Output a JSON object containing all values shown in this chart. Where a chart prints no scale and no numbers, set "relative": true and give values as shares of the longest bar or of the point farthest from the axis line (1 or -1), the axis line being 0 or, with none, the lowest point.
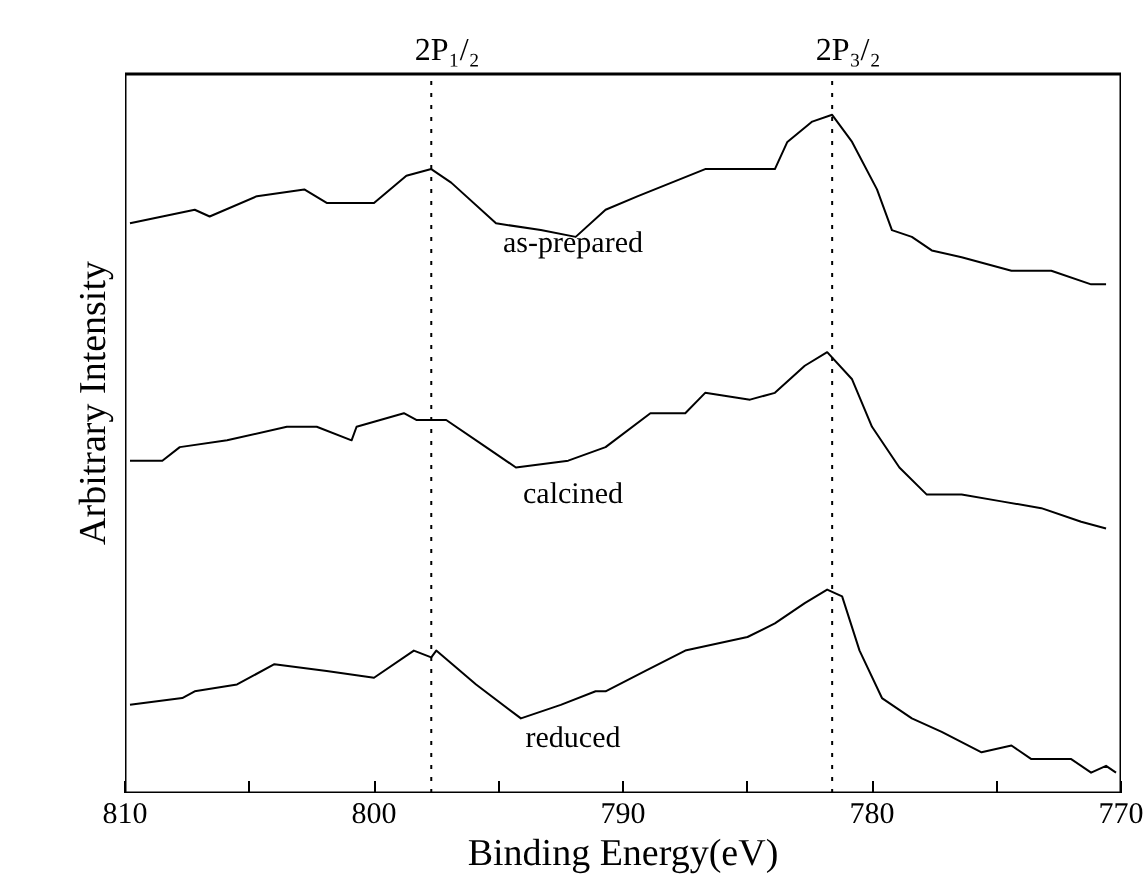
{
  "chart_data": {
    "type": "line",
    "xlabel": "Binding Energy(eV)",
    "ylabel": "Arbitrary Intensity",
    "relative": true,
    "xlim": [
      810,
      770
    ],
    "xticks": [
      810,
      {
        "value": 805,
        "label": null
      },
      800,
      {
        "value": 795,
        "label": null
      },
      790,
      {
        "value": 785,
        "label": null
      },
      780,
      {
        "value": 775,
        "label": null
      },
      770
    ],
    "grid": false,
    "marker": "none",
    "line_style": "solid",
    "ref_lines": [
      {
        "axis": "x",
        "value": 797.7,
        "label": "2P₁/₂",
        "line_style": "dotted",
        "color": "#000000"
      },
      {
        "axis": "x",
        "value": 781.6,
        "label": "2P₃/₂",
        "line_style": "dotted",
        "color": "#000000"
      }
    ],
    "series": [
      {
        "name": "as-prepared",
        "color": "#000000",
        "x": [
          809.8,
          807.2,
          806.6,
          804.7,
          802.8,
          801.9,
          800.0,
          798.7,
          797.7,
          796.9,
          795.1,
          793.3,
          791.9,
          790.7,
          789.4,
          786.7,
          783.9,
          783.4,
          782.4,
          781.6,
          780.8,
          779.8,
          779.2,
          778.4,
          777.6,
          776.4,
          774.4,
          772.8,
          771.2,
          770.6
        ],
        "values": [
          0.84,
          0.86,
          0.85,
          0.88,
          0.89,
          0.87,
          0.87,
          0.91,
          0.92,
          0.9,
          0.84,
          0.83,
          0.82,
          0.86,
          0.88,
          0.92,
          0.92,
          0.96,
          0.99,
          1.0,
          0.96,
          0.89,
          0.83,
          0.82,
          0.8,
          0.79,
          0.77,
          0.77,
          0.75,
          0.75
        ]
      },
      {
        "name": "calcined",
        "color": "#000000",
        "x": [
          809.8,
          808.5,
          807.8,
          805.9,
          803.5,
          802.3,
          800.9,
          800.7,
          798.8,
          798.3,
          797.1,
          795.5,
          794.3,
          792.2,
          790.7,
          788.9,
          787.5,
          786.7,
          784.9,
          783.9,
          782.7,
          781.8,
          780.8,
          780.0,
          778.9,
          777.8,
          776.4,
          774.8,
          773.2,
          771.6,
          770.6
        ],
        "values": [
          0.49,
          0.49,
          0.51,
          0.52,
          0.54,
          0.54,
          0.52,
          0.54,
          0.56,
          0.55,
          0.55,
          0.51,
          0.48,
          0.49,
          0.51,
          0.56,
          0.56,
          0.59,
          0.58,
          0.59,
          0.63,
          0.65,
          0.61,
          0.54,
          0.48,
          0.44,
          0.44,
          0.43,
          0.42,
          0.4,
          0.39
        ]
      },
      {
        "name": "reduced",
        "color": "#000000",
        "x": [
          809.8,
          807.7,
          807.2,
          805.5,
          804.0,
          801.9,
          800.0,
          798.4,
          797.7,
          797.5,
          795.9,
          794.1,
          792.5,
          791.1,
          790.7,
          789.1,
          787.5,
          785.0,
          783.9,
          782.7,
          781.8,
          781.2,
          780.5,
          779.6,
          778.4,
          777.2,
          775.6,
          774.4,
          773.6,
          772.0,
          771.2,
          770.6,
          770.2
        ],
        "values": [
          0.13,
          0.14,
          0.15,
          0.16,
          0.19,
          0.18,
          0.17,
          0.21,
          0.2,
          0.21,
          0.16,
          0.11,
          0.13,
          0.15,
          0.15,
          0.18,
          0.21,
          0.23,
          0.25,
          0.28,
          0.3,
          0.29,
          0.21,
          0.14,
          0.11,
          0.09,
          0.06,
          0.07,
          0.05,
          0.05,
          0.03,
          0.04,
          0.03
        ]
      }
    ]
  }
}
